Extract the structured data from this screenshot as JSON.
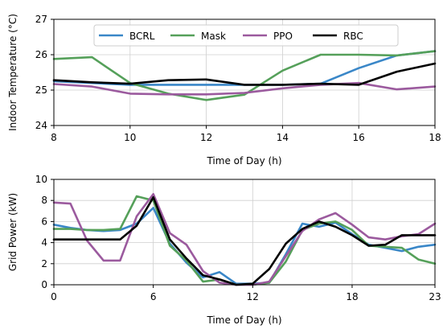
{
  "chart_data": [
    {
      "type": "line",
      "xlabel": "Time of Day (h)",
      "ylabel": "Indoor Temperature (°C)",
      "xlim": [
        8,
        18
      ],
      "ylim": [
        24,
        27
      ],
      "xticks": [
        8,
        10,
        12,
        14,
        16,
        18
      ],
      "yticks": [
        24,
        25,
        26,
        27
      ],
      "grid": true,
      "legend": "top-center",
      "x": [
        8,
        9,
        10,
        11,
        12,
        13,
        14,
        15,
        16,
        17,
        18
      ],
      "series": [
        {
          "name": "BCRL",
          "color": "#3a87c8",
          "values": [
            25.25,
            25.2,
            25.15,
            25.15,
            25.15,
            25.15,
            25.15,
            25.18,
            25.62,
            25.98,
            26.1
          ]
        },
        {
          "name": "Mask",
          "color": "#55a05a",
          "values": [
            25.88,
            25.93,
            25.2,
            24.9,
            24.72,
            24.87,
            25.55,
            26.0,
            26.0,
            25.98,
            26.1
          ]
        },
        {
          "name": "PPO",
          "color": "#9b5a9e",
          "values": [
            25.17,
            25.1,
            24.9,
            24.88,
            24.88,
            24.92,
            25.05,
            25.15,
            25.2,
            25.02,
            25.1
          ]
        },
        {
          "name": "RBC",
          "color": "#000000",
          "values": [
            25.28,
            25.22,
            25.18,
            25.28,
            25.3,
            25.15,
            25.15,
            25.18,
            25.15,
            25.52,
            25.75
          ]
        }
      ]
    },
    {
      "type": "line",
      "xlabel": "Time of Day (h)",
      "ylabel": "Grid Power (kW)",
      "xlim": [
        0,
        23
      ],
      "ylim": [
        0,
        10
      ],
      "xticks": [
        0,
        6,
        12,
        18,
        23
      ],
      "yticks": [
        0,
        2,
        4,
        6,
        8,
        10
      ],
      "grid": true,
      "x": [
        0,
        1,
        2,
        3,
        4,
        5,
        6,
        7,
        8,
        9,
        10,
        11,
        12,
        13,
        14,
        15,
        16,
        17,
        18,
        19,
        20,
        21,
        22,
        23
      ],
      "series": [
        {
          "name": "BCRL",
          "color": "#3a87c8",
          "values": [
            5.7,
            5.4,
            5.2,
            5.1,
            5.2,
            5.8,
            7.3,
            3.9,
            2.1,
            0.7,
            1.2,
            0.1,
            0.1,
            0.2,
            2.9,
            5.8,
            5.5,
            5.9,
            4.8,
            3.8,
            3.5,
            3.2,
            3.6,
            3.8
          ]
        },
        {
          "name": "Mask",
          "color": "#55a05a",
          "values": [
            5.3,
            5.3,
            5.2,
            5.2,
            5.3,
            8.4,
            8.0,
            3.7,
            2.3,
            0.3,
            0.5,
            0.0,
            0.0,
            0.2,
            2.2,
            5.2,
            5.8,
            6.0,
            5.2,
            3.7,
            3.6,
            3.5,
            2.4,
            2.0
          ]
        },
        {
          "name": "PPO",
          "color": "#9b5a9e",
          "values": [
            7.8,
            7.7,
            4.2,
            2.3,
            2.3,
            6.5,
            8.6,
            4.9,
            3.8,
            1.3,
            0.2,
            0.0,
            0.0,
            0.3,
            2.7,
            5.1,
            6.2,
            6.8,
            5.7,
            4.5,
            4.3,
            4.6,
            4.8,
            5.8
          ]
        },
        {
          "name": "RBC",
          "color": "#000000",
          "values": [
            4.3,
            4.3,
            4.3,
            4.3,
            4.3,
            5.6,
            8.3,
            4.3,
            2.5,
            0.9,
            0.5,
            0.0,
            0.1,
            1.5,
            3.9,
            5.3,
            6.0,
            5.5,
            4.7,
            3.7,
            3.8,
            4.7,
            4.7,
            4.7
          ]
        }
      ]
    }
  ]
}
